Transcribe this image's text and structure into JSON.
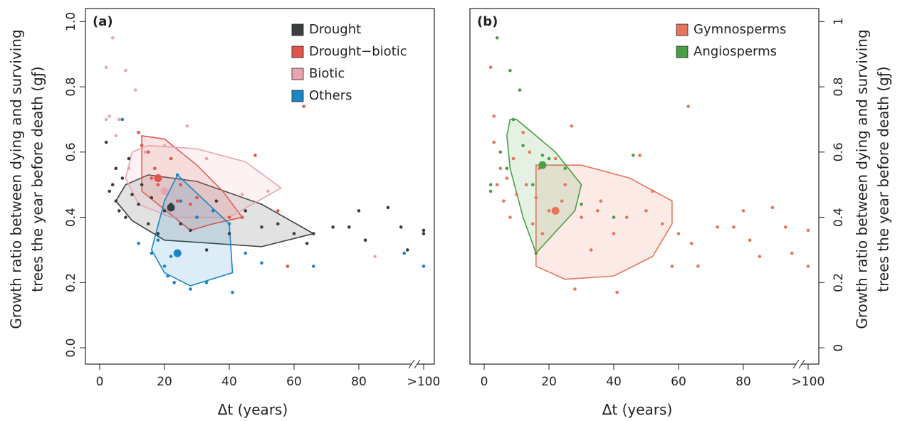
{
  "chart_data": [
    {
      "type": "scatter",
      "panel_label": "(a)",
      "xlabel": "Δt (years)",
      "ylabel": [
        "Growth ratio between dying and surviving",
        "trees the year before death (gƒ)"
      ],
      "xlim": [
        -4.4,
        103.3
      ],
      "ylim": [
        -0.05,
        1.04
      ],
      "xticks": [
        0,
        20,
        40,
        60,
        80,
        {
          "value": 100,
          "label": ">100"
        }
      ],
      "yticks": [
        {
          "value": 0,
          "label": "0.0"
        },
        0.2,
        0.4,
        0.6,
        0.8,
        {
          "value": 1,
          "label": "1.0"
        }
      ],
      "yaxis_side": "left",
      "legend": "upper right",
      "series": [
        {
          "name": "Drought",
          "color": "#3a3f3f",
          "x": [
            2,
            3,
            4,
            5,
            5,
            6,
            7,
            8,
            9,
            10,
            12,
            13,
            15,
            16,
            18,
            20,
            22,
            25,
            28,
            30,
            33,
            36,
            40,
            45,
            50,
            55,
            60,
            64,
            66,
            72,
            77,
            80,
            82,
            89,
            93,
            95,
            100,
            100
          ],
          "y": [
            0.63,
            0.48,
            0.5,
            0.45,
            0.55,
            0.42,
            0.52,
            0.4,
            0.58,
            0.47,
            0.44,
            0.5,
            0.38,
            0.46,
            0.35,
            0.42,
            0.44,
            0.38,
            0.36,
            0.4,
            0.3,
            0.45,
            0.35,
            0.42,
            0.37,
            0.38,
            0.35,
            0.32,
            0.35,
            0.37,
            0.37,
            0.42,
            0.33,
            0.43,
            0.37,
            0.3,
            0.36,
            0.35
          ],
          "hull_x": [
            8,
            15,
            30,
            50,
            66,
            50,
            20,
            10,
            5
          ],
          "hull_y": [
            0.5,
            0.53,
            0.51,
            0.44,
            0.35,
            0.31,
            0.33,
            0.39,
            0.45
          ],
          "centroid_x": 22,
          "centroid_y": 0.43
        },
        {
          "name": "Drought−biotic",
          "color": "#e0534a",
          "x": [
            12,
            13,
            15,
            16,
            17,
            18,
            20,
            22,
            24,
            25,
            28,
            30,
            35,
            40,
            44,
            48,
            55,
            63,
            58
          ],
          "y": [
            0.66,
            0.62,
            0.6,
            0.52,
            0.55,
            0.5,
            0.48,
            0.58,
            0.45,
            0.5,
            0.44,
            0.46,
            0.42,
            0.4,
            0.4,
            0.59,
            0.42,
            0.74,
            0.25
          ],
          "hull_x": [
            13,
            20,
            30,
            38,
            44,
            35,
            28,
            13
          ],
          "hull_y": [
            0.65,
            0.64,
            0.56,
            0.48,
            0.4,
            0.38,
            0.36,
            0.48
          ],
          "centroid_x": 18,
          "centroid_y": 0.52
        },
        {
          "name": "Biotic",
          "color": "#e8a5b0",
          "x": [
            2,
            4,
            6,
            8,
            11,
            3,
            5,
            9,
            14,
            20,
            27,
            33,
            44,
            52,
            85,
            2
          ],
          "y": [
            0.86,
            0.95,
            0.7,
            0.85,
            0.79,
            0.71,
            0.65,
            0.55,
            0.6,
            0.62,
            0.68,
            0.58,
            0.47,
            0.48,
            0.28,
            0.7
          ],
          "hull_x": [
            10,
            15,
            30,
            45,
            56,
            40,
            22,
            12,
            8
          ],
          "hull_y": [
            0.6,
            0.62,
            0.61,
            0.57,
            0.49,
            0.4,
            0.4,
            0.44,
            0.52
          ],
          "centroid_x": 20,
          "centroid_y": 0.48
        },
        {
          "name": "Others",
          "color": "#1b85c8",
          "x": [
            7,
            12,
            16,
            18,
            20,
            21,
            22,
            23,
            24,
            25,
            28,
            30,
            33,
            35,
            40,
            41,
            45,
            50,
            66,
            94,
            100
          ],
          "y": [
            0.7,
            0.32,
            0.29,
            0.33,
            0.25,
            0.22,
            0.28,
            0.2,
            0.53,
            0.45,
            0.18,
            0.4,
            0.2,
            0.42,
            0.38,
            0.17,
            0.29,
            0.26,
            0.25,
            0.29,
            0.25
          ],
          "hull_x": [
            24,
            40,
            41,
            28,
            20,
            16,
            20
          ],
          "hull_y": [
            0.53,
            0.38,
            0.23,
            0.19,
            0.23,
            0.3,
            0.45
          ],
          "centroid_x": 24,
          "centroid_y": 0.29
        }
      ]
    },
    {
      "type": "scatter",
      "panel_label": "(b)",
      "xlabel": "Δt (years)",
      "ylabel": [
        "Growth ratio between dying and surviving",
        "trees the year before death (gƒ)"
      ],
      "xlim": [
        -4.4,
        103.3
      ],
      "ylim": [
        -0.05,
        1.04
      ],
      "xticks": [
        0,
        20,
        40,
        60,
        80,
        {
          "value": 100,
          "label": ">100"
        }
      ],
      "yticks": [
        0,
        0.2,
        0.4,
        0.6,
        0.8,
        1
      ],
      "yaxis_side": "right",
      "legend": "upper right",
      "series": [
        {
          "name": "Gymnosperms",
          "color": "#e8755a",
          "x": [
            2,
            3,
            3,
            4,
            5,
            6,
            7,
            8,
            9,
            10,
            12,
            13,
            14,
            15,
            16,
            17,
            18,
            20,
            22,
            24,
            25,
            27,
            28,
            30,
            33,
            35,
            36,
            40,
            41,
            44,
            48,
            50,
            52,
            55,
            58,
            60,
            63,
            64,
            66,
            72,
            77,
            80,
            82,
            85,
            89,
            93,
            95,
            100,
            100
          ],
          "y": [
            0.86,
            0.71,
            0.63,
            0.5,
            0.55,
            0.45,
            0.52,
            0.4,
            0.58,
            0.47,
            0.66,
            0.5,
            0.6,
            0.38,
            0.46,
            0.55,
            0.35,
            0.42,
            0.58,
            0.45,
            0.5,
            0.68,
            0.18,
            0.4,
            0.3,
            0.42,
            0.45,
            0.35,
            0.17,
            0.4,
            0.59,
            0.42,
            0.48,
            0.38,
            0.25,
            0.35,
            0.74,
            0.32,
            0.25,
            0.37,
            0.37,
            0.42,
            0.33,
            0.28,
            0.43,
            0.37,
            0.29,
            0.36,
            0.25
          ],
          "hull_x": [
            16,
            30,
            45,
            58,
            58,
            52,
            40,
            25,
            16,
            16
          ],
          "hull_y": [
            0.56,
            0.56,
            0.52,
            0.45,
            0.38,
            0.28,
            0.22,
            0.21,
            0.25,
            0.4
          ],
          "centroid_x": 22,
          "centroid_y": 0.42
        },
        {
          "name": "Angiosperms",
          "color": "#4a9e45",
          "x": [
            4,
            8,
            11,
            2,
            5,
            7,
            9,
            12,
            15,
            18,
            20,
            25,
            30,
            46,
            40,
            16,
            2
          ],
          "y": [
            0.95,
            0.85,
            0.79,
            0.5,
            0.6,
            0.55,
            0.7,
            0.62,
            0.5,
            0.59,
            0.58,
            0.55,
            0.44,
            0.59,
            0.4,
            0.29,
            0.48
          ],
          "hull_x": [
            8,
            10,
            22,
            30,
            28,
            16,
            12,
            8,
            7
          ],
          "hull_y": [
            0.7,
            0.7,
            0.6,
            0.5,
            0.42,
            0.29,
            0.4,
            0.55,
            0.65
          ],
          "centroid_x": 18,
          "centroid_y": 0.56
        }
      ]
    }
  ]
}
